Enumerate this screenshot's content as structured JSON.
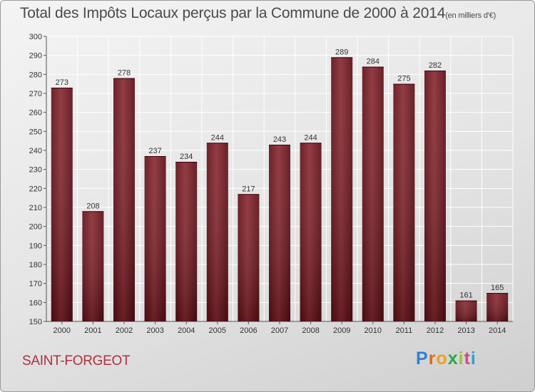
{
  "header": {
    "title": "Total des Impôts Locaux perçus par la Commune de 2000 à 2014",
    "unit": "(en milliers d'€)"
  },
  "footer": {
    "commune": "SAINT-FORGEOT",
    "brand": [
      "P",
      "r",
      "o",
      "x",
      "i",
      "t",
      "i"
    ]
  },
  "chart_data": {
    "type": "bar",
    "title": "Total des Impôts Locaux perçus par la Commune de 2000 à 2014",
    "subtitle": "(en milliers d'€)",
    "xlabel": "",
    "ylabel": "",
    "categories": [
      "2000",
      "2001",
      "2002",
      "2003",
      "2004",
      "2005",
      "2006",
      "2007",
      "2008",
      "2009",
      "2010",
      "2011",
      "2012",
      "2013",
      "2014"
    ],
    "values": [
      273,
      208,
      278,
      237,
      234,
      244,
      217,
      243,
      244,
      289,
      284,
      275,
      282,
      161,
      165
    ],
    "ylim": [
      150,
      300
    ],
    "yticks": [
      150,
      160,
      170,
      180,
      190,
      200,
      210,
      220,
      230,
      240,
      250,
      260,
      270,
      280,
      290,
      300
    ],
    "grid": true,
    "bar_color": "#7a1a22",
    "data_labels": true
  }
}
